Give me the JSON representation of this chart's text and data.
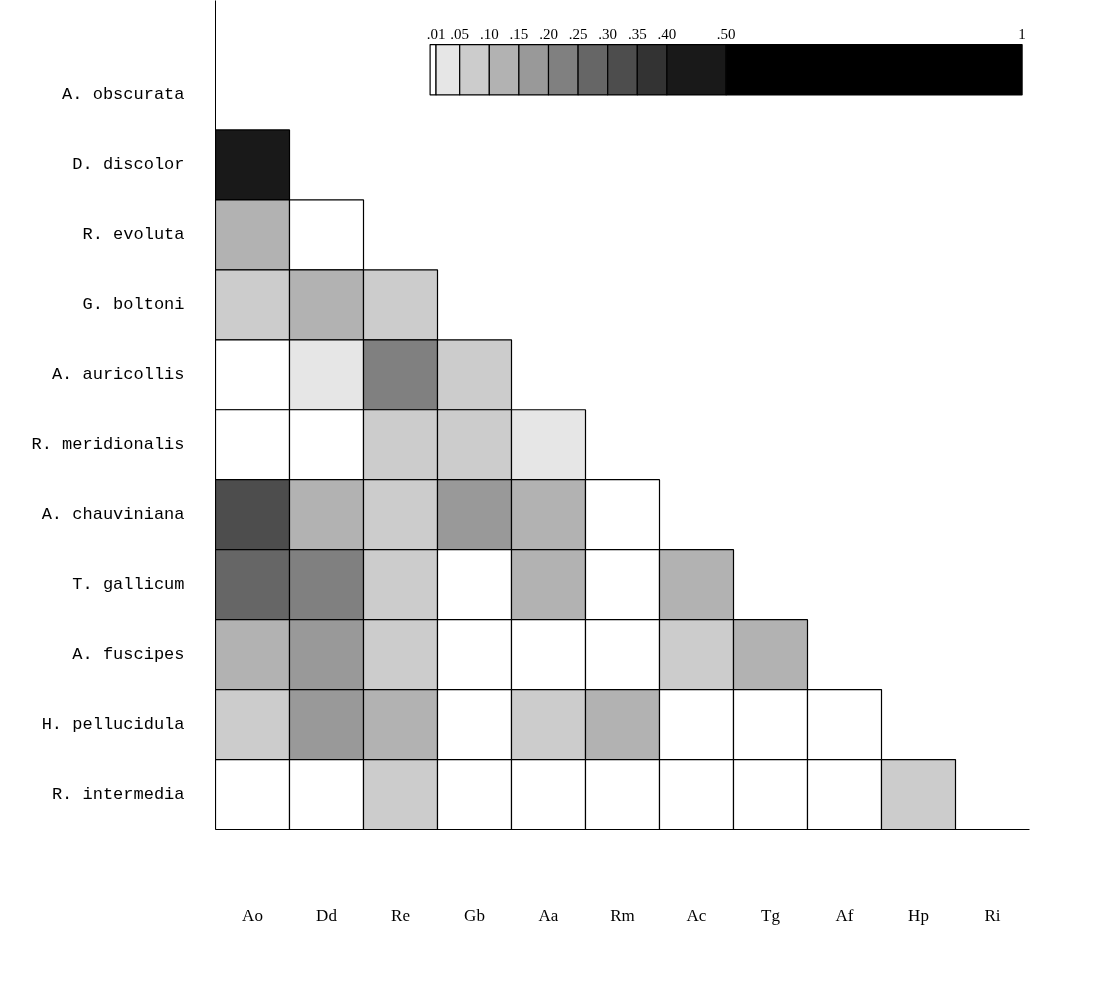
{
  "chart_data": {
    "type": "heatmap",
    "categories": [
      "Ao",
      "Dd",
      "Re",
      "Gb",
      "Aa",
      "Rm",
      "Ac",
      "Tg",
      "Af",
      "Hp",
      "Ri"
    ],
    "y_categories": [
      "A. obscurata",
      "D. discolor",
      "R. evoluta",
      "G. boltoni",
      "A. auricollis",
      "R. meridionalis",
      "A. chauviniana",
      "T. gallicum",
      "A. fuscipes",
      "H. pellucidula",
      "R. intermedia"
    ],
    "cells": [
      [
        null,
        null,
        null,
        null,
        null,
        null,
        null,
        null,
        null,
        null,
        null
      ],
      [
        0.45,
        null,
        null,
        null,
        null,
        null,
        null,
        null,
        null,
        null,
        null
      ],
      [
        0.125,
        0.005,
        null,
        null,
        null,
        null,
        null,
        null,
        null,
        null,
        null
      ],
      [
        0.075,
        0.125,
        0.075,
        null,
        null,
        null,
        null,
        null,
        null,
        null,
        null
      ],
      [
        0.005,
        0.03,
        0.225,
        0.075,
        null,
        null,
        null,
        null,
        null,
        null,
        null
      ],
      [
        0.005,
        0.005,
        0.075,
        0.075,
        0.03,
        null,
        null,
        null,
        null,
        null,
        null
      ],
      [
        0.325,
        0.125,
        0.075,
        0.175,
        0.125,
        0.005,
        null,
        null,
        null,
        null,
        null
      ],
      [
        0.275,
        0.225,
        0.075,
        0.005,
        0.125,
        0.005,
        0.125,
        null,
        null,
        null,
        null
      ],
      [
        0.125,
        0.175,
        0.075,
        0.005,
        0.005,
        0.005,
        0.075,
        0.125,
        null,
        null,
        null
      ],
      [
        0.075,
        0.175,
        0.125,
        0.005,
        0.075,
        0.125,
        0.005,
        0.005,
        0.005,
        null,
        null
      ],
      [
        0.005,
        0.005,
        0.075,
        0.005,
        0.005,
        0.005,
        0.005,
        0.005,
        0.005,
        0.075,
        null
      ]
    ],
    "clim": [
      0,
      1
    ],
    "cticks": [
      {
        "value": 0.01,
        "label": ".01"
      },
      {
        "value": 0.05,
        "label": ".05"
      },
      {
        "value": 0.1,
        "label": ".10"
      },
      {
        "value": 0.15,
        "label": ".15"
      },
      {
        "value": 0.2,
        "label": ".20"
      },
      {
        "value": 0.25,
        "label": ".25"
      },
      {
        "value": 0.3,
        "label": ".30"
      },
      {
        "value": 0.35,
        "label": ".35"
      },
      {
        "value": 0.4,
        "label": ".40"
      },
      {
        "value": 0.5,
        "label": ".50"
      },
      {
        "value": 1,
        "label": "1"
      }
    ]
  }
}
